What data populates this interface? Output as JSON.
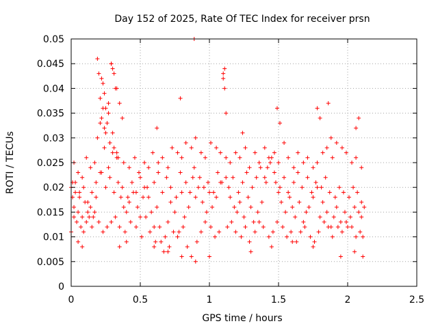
{
  "chart_data": {
    "type": "scatter",
    "title": "Day 152 of 2025, Rate Of TEC Index for receiver prsn",
    "xlabel": "GPS time / hours",
    "ylabel": "ROTI / TECUs",
    "xlim": [
      0,
      2.5
    ],
    "ylim": [
      0,
      0.05
    ],
    "xticks": [
      0,
      0.5,
      1,
      1.5,
      2,
      2.5
    ],
    "xtick_labels": [
      "0",
      "0.5",
      "1",
      "1.5",
      "2",
      "2.5"
    ],
    "yticks": [
      0,
      0.005,
      0.01,
      0.015,
      0.02,
      0.025,
      0.03,
      0.035,
      0.04,
      0.045,
      0.05
    ],
    "ytick_labels": [
      "0",
      "0.005",
      "0.01",
      "0.015",
      "0.02",
      "0.025",
      "0.03",
      "0.035",
      "0.04",
      "0.045",
      "0.05"
    ],
    "grid": true,
    "marker": "+",
    "color": "#ff0000",
    "series": [
      {
        "name": "ROTI",
        "x": [
          0.0,
          0.01,
          0.02,
          0.03,
          0.05,
          0.06,
          0.08,
          0.1,
          0.12,
          0.14,
          0.16,
          0.18,
          0.19,
          0.2,
          0.21,
          0.22,
          0.23,
          0.24,
          0.25,
          0.26,
          0.27,
          0.28,
          0.29,
          0.3,
          0.31,
          0.32,
          0.33,
          0.34,
          0.36,
          0.38,
          0.4,
          0.42,
          0.45,
          0.48,
          0.5,
          0.52,
          0.55,
          0.58,
          0.6,
          0.62,
          0.65,
          0.68,
          0.7,
          0.72,
          0.75,
          0.78,
          0.8,
          0.82,
          0.85,
          0.88,
          0.9,
          0.92,
          0.95,
          0.98,
          1.0,
          1.02,
          1.05,
          1.08,
          1.1,
          1.11,
          1.12,
          1.15,
          1.18,
          1.2,
          1.22,
          1.25,
          1.28,
          1.3,
          1.32,
          1.35,
          1.38,
          1.4,
          1.42,
          1.45,
          1.48,
          1.5,
          1.52,
          1.55,
          1.58,
          1.6,
          1.62,
          1.65,
          1.68,
          1.7,
          1.72,
          1.75,
          1.78,
          1.8,
          1.82,
          1.85,
          1.88,
          1.9,
          1.92,
          1.95,
          1.98,
          2.0,
          2.02,
          2.05,
          2.08,
          2.1,
          2.12,
          0.0,
          0.02,
          0.04,
          0.07,
          0.09,
          0.11,
          0.13,
          0.15,
          0.17,
          0.2,
          0.23,
          0.26,
          0.29,
          0.32,
          0.35,
          0.39,
          0.43,
          0.47,
          0.51,
          0.54,
          0.57,
          0.61,
          0.64,
          0.67,
          0.71,
          0.74,
          0.77,
          0.81,
          0.84,
          0.87,
          0.91,
          0.94,
          0.97,
          1.01,
          1.04,
          1.07,
          1.13,
          1.16,
          1.19,
          1.23,
          1.26,
          1.29,
          1.33,
          1.36,
          1.39,
          1.43,
          1.46,
          1.49,
          1.53,
          1.56,
          1.59,
          1.63,
          1.66,
          1.69,
          1.73,
          1.76,
          1.79,
          1.83,
          1.86,
          1.89,
          1.93,
          1.96,
          1.99,
          2.03,
          2.06,
          2.09,
          2.11,
          0.01,
          0.03,
          0.06,
          0.09,
          0.12,
          0.15,
          0.18,
          0.22,
          0.25,
          0.28,
          0.31,
          0.34,
          0.37,
          0.41,
          0.44,
          0.47,
          0.5,
          0.53,
          0.56,
          0.6,
          0.63,
          0.66,
          0.69,
          0.72,
          0.76,
          0.79,
          0.83,
          0.86,
          0.89,
          0.93,
          0.96,
          0.99,
          1.03,
          1.06,
          1.09,
          1.14,
          1.17,
          1.21,
          1.24,
          1.27,
          1.31,
          1.34,
          1.37,
          1.41,
          1.44,
          1.47,
          1.51,
          1.54,
          1.57,
          1.61,
          1.64,
          1.67,
          1.71,
          1.74,
          1.77,
          1.81,
          1.84,
          1.87,
          1.91,
          1.94,
          1.97,
          2.01,
          2.04,
          2.07,
          2.1,
          0.02,
          0.05,
          0.08,
          0.11,
          0.14,
          0.17,
          0.21,
          0.24,
          0.27,
          0.3,
          0.33,
          0.38,
          0.42,
          0.46,
          0.49,
          0.53,
          0.56,
          0.59,
          0.63,
          0.66,
          0.7,
          0.73,
          0.77,
          0.8,
          0.83,
          0.87,
          0.9,
          0.94,
          0.97,
          1.01,
          1.05,
          1.08,
          1.12,
          1.15,
          1.19,
          1.22,
          1.26,
          1.29,
          1.33,
          1.36,
          1.4,
          1.43,
          1.47,
          1.5,
          1.54,
          1.57,
          1.61,
          1.64,
          1.68,
          1.71,
          1.75,
          1.78,
          1.82,
          1.85,
          1.89,
          1.92,
          1.96,
          1.99,
          2.03,
          2.06,
          2.1,
          0.19,
          0.22,
          0.24,
          0.27,
          0.29,
          0.3,
          0.31,
          0.33,
          0.35,
          0.37,
          0.25,
          0.28,
          0.21,
          0.23,
          0.62,
          0.79,
          0.89,
          1.1,
          1.11,
          1.12,
          1.24,
          1.49,
          1.51,
          1.78,
          1.8,
          1.86,
          1.88,
          2.06,
          2.08,
          0.05,
          0.08,
          0.35,
          0.4,
          0.6,
          0.7,
          0.8,
          0.9,
          1.0,
          1.3,
          1.45,
          1.6,
          1.75,
          1.95,
          2.05,
          2.11
        ],
        "y": [
          0.02,
          0.018,
          0.016,
          0.021,
          0.015,
          0.019,
          0.014,
          0.017,
          0.015,
          0.016,
          0.014,
          0.018,
          0.03,
          0.043,
          0.038,
          0.034,
          0.041,
          0.032,
          0.036,
          0.033,
          0.037,
          0.029,
          0.045,
          0.031,
          0.028,
          0.04,
          0.027,
          0.026,
          0.018,
          0.016,
          0.015,
          0.017,
          0.019,
          0.016,
          0.014,
          0.018,
          0.02,
          0.015,
          0.012,
          0.016,
          0.009,
          0.01,
          0.013,
          0.017,
          0.015,
          0.011,
          0.019,
          0.014,
          0.016,
          0.022,
          0.018,
          0.02,
          0.017,
          0.015,
          0.019,
          0.016,
          0.018,
          0.021,
          0.043,
          0.044,
          0.022,
          0.018,
          0.016,
          0.015,
          0.017,
          0.014,
          0.018,
          0.016,
          0.013,
          0.015,
          0.017,
          0.022,
          0.024,
          0.026,
          0.021,
          0.019,
          0.017,
          0.015,
          0.018,
          0.016,
          0.014,
          0.017,
          0.013,
          0.015,
          0.016,
          0.018,
          0.02,
          0.014,
          0.017,
          0.015,
          0.012,
          0.014,
          0.016,
          0.013,
          0.015,
          0.012,
          0.014,
          0.016,
          0.015,
          0.014,
          0.016,
          0.011,
          0.014,
          0.013,
          0.012,
          0.011,
          0.013,
          0.014,
          0.012,
          0.015,
          0.013,
          0.011,
          0.012,
          0.013,
          0.014,
          0.012,
          0.011,
          0.013,
          0.012,
          0.01,
          0.014,
          0.011,
          0.009,
          0.012,
          0.007,
          0.008,
          0.011,
          0.01,
          0.012,
          0.008,
          0.006,
          0.009,
          0.011,
          0.013,
          0.012,
          0.01,
          0.011,
          0.012,
          0.013,
          0.011,
          0.01,
          0.012,
          0.009,
          0.011,
          0.013,
          0.012,
          0.01,
          0.011,
          0.013,
          0.012,
          0.01,
          0.011,
          0.009,
          0.011,
          0.012,
          0.01,
          0.009,
          0.011,
          0.013,
          0.012,
          0.01,
          0.012,
          0.011,
          0.013,
          0.012,
          0.01,
          0.011,
          0.01,
          0.021,
          0.019,
          0.018,
          0.02,
          0.017,
          0.019,
          0.021,
          0.023,
          0.02,
          0.022,
          0.019,
          0.021,
          0.02,
          0.018,
          0.021,
          0.019,
          0.022,
          0.02,
          0.018,
          0.021,
          0.023,
          0.019,
          0.022,
          0.02,
          0.018,
          0.023,
          0.021,
          0.019,
          0.024,
          0.022,
          0.02,
          0.021,
          0.019,
          0.023,
          0.021,
          0.02,
          0.022,
          0.019,
          0.021,
          0.023,
          0.02,
          0.022,
          0.024,
          0.021,
          0.025,
          0.023,
          0.02,
          0.022,
          0.019,
          0.021,
          0.023,
          0.02,
          0.022,
          0.019,
          0.021,
          0.02,
          0.022,
          0.019,
          0.018,
          0.02,
          0.019,
          0.018,
          0.02,
          0.019,
          0.017,
          0.025,
          0.023,
          0.022,
          0.026,
          0.024,
          0.025,
          0.023,
          0.028,
          0.024,
          0.027,
          0.026,
          0.025,
          0.024,
          0.026,
          0.023,
          0.025,
          0.024,
          0.027,
          0.025,
          0.026,
          0.024,
          0.028,
          0.027,
          0.026,
          0.029,
          0.028,
          0.03,
          0.027,
          0.026,
          0.029,
          0.028,
          0.027,
          0.026,
          0.025,
          0.027,
          0.026,
          0.028,
          0.024,
          0.027,
          0.025,
          0.028,
          0.026,
          0.027,
          0.025,
          0.029,
          0.026,
          0.024,
          0.027,
          0.025,
          0.026,
          0.024,
          0.025,
          0.027,
          0.028,
          0.026,
          0.029,
          0.028,
          0.027,
          0.025,
          0.026,
          0.024,
          0.046,
          0.042,
          0.039,
          0.035,
          0.045,
          0.044,
          0.043,
          0.04,
          0.037,
          0.034,
          0.031,
          0.029,
          0.033,
          0.036,
          0.032,
          0.038,
          0.05,
          0.042,
          0.04,
          0.035,
          0.031,
          0.036,
          0.033,
          0.036,
          0.034,
          0.037,
          0.03,
          0.032,
          0.034,
          0.009,
          0.008,
          0.008,
          0.009,
          0.008,
          0.007,
          0.006,
          0.005,
          0.006,
          0.007,
          0.008,
          0.009,
          0.008,
          0.006,
          0.007,
          0.006
        ]
      }
    ]
  }
}
